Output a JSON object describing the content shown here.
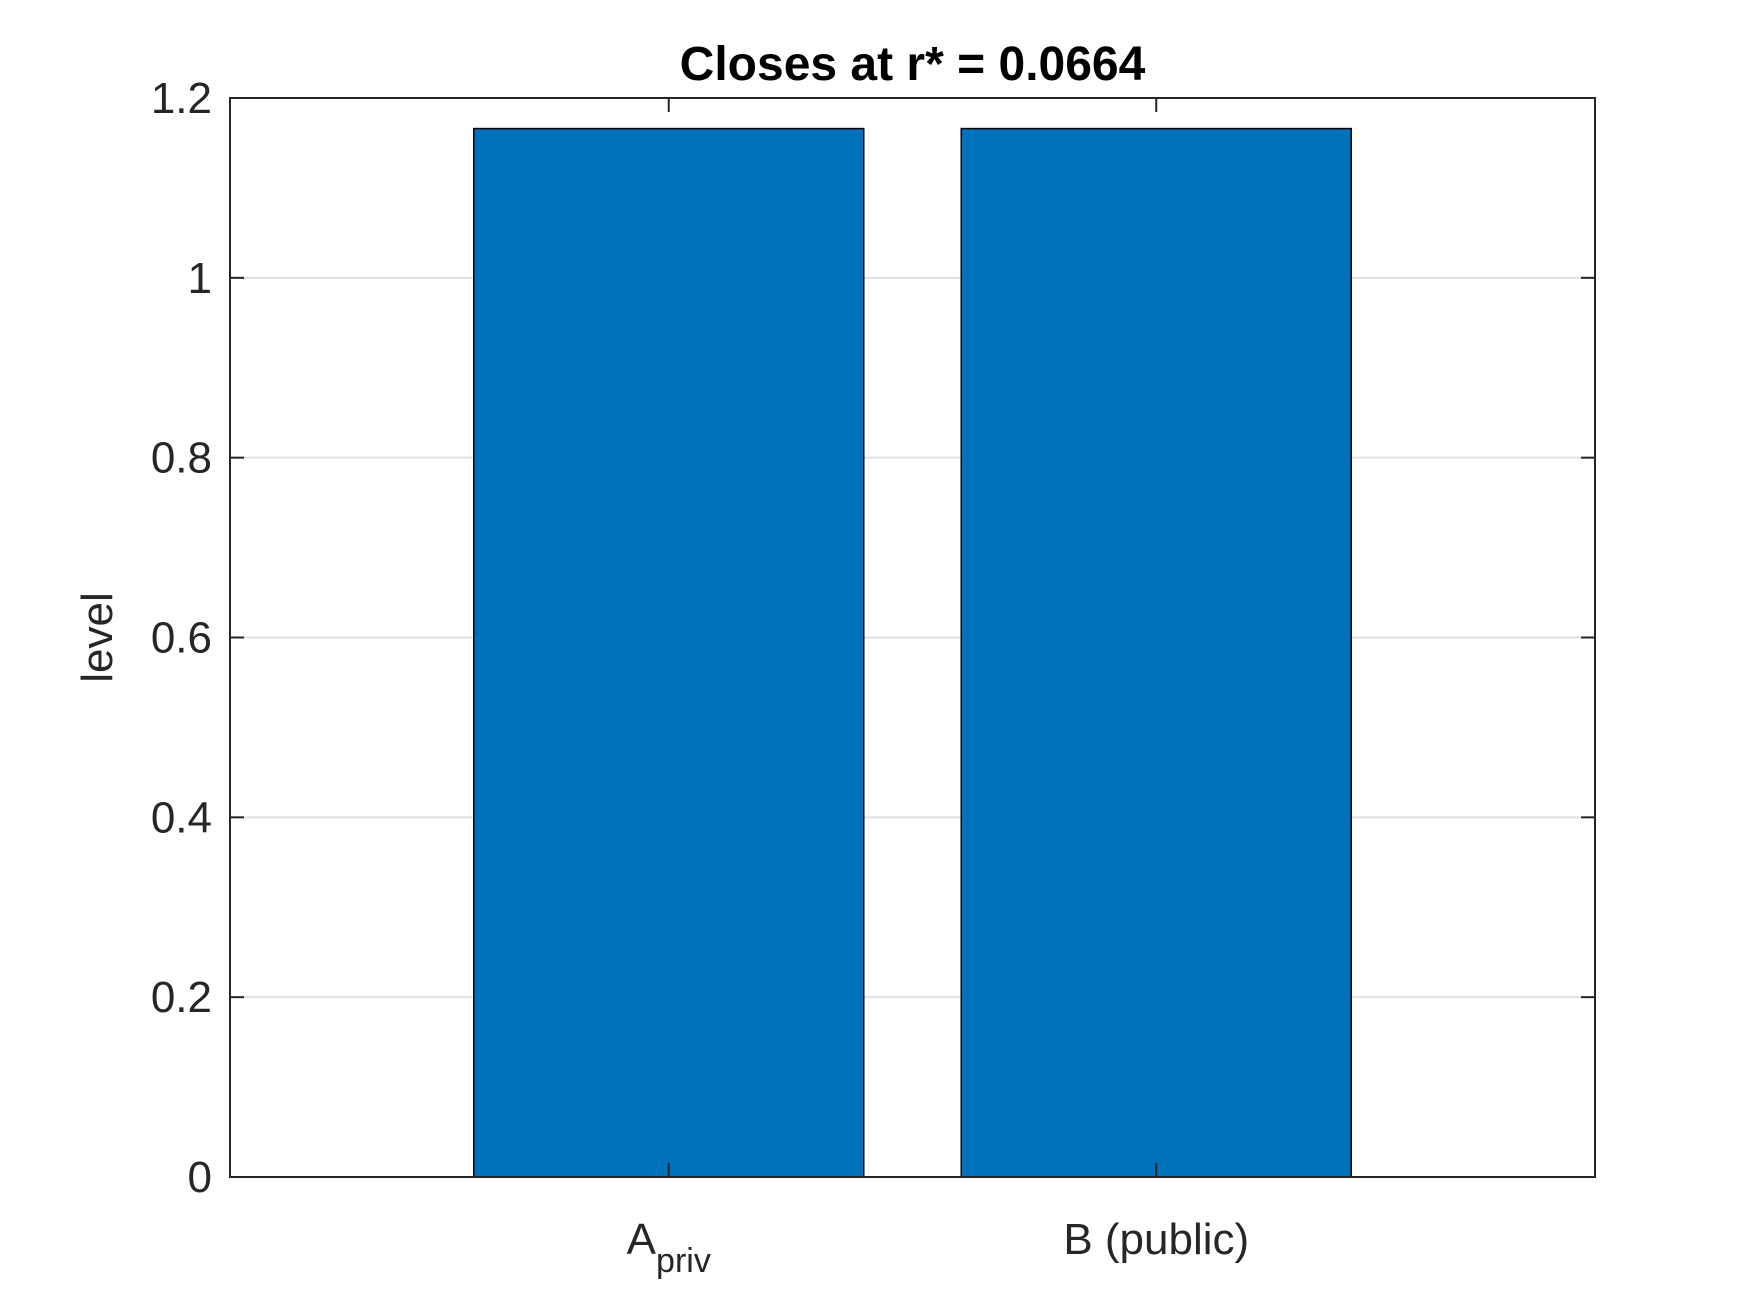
{
  "chart_data": {
    "type": "bar",
    "title": "Closes at r* = 0.0664",
    "xlabel": "",
    "ylabel": "level",
    "categories": [
      {
        "main": "A",
        "sub": "priv"
      },
      {
        "main": "B (public)",
        "sub": ""
      }
    ],
    "values": [
      1.166,
      1.166
    ],
    "ylim": [
      0,
      1.2
    ],
    "yticks": [
      0,
      0.2,
      0.4,
      0.6,
      0.8,
      1,
      1.2
    ],
    "ytick_labels": [
      "0",
      "0.2",
      "0.4",
      "0.6",
      "0.8",
      "1",
      "1.2"
    ],
    "grid": "horizontal",
    "bar_color": "#0072BD",
    "bar_edge_color": "#000000",
    "grid_color": "#E0E0E0",
    "axis_color": "#262626"
  }
}
